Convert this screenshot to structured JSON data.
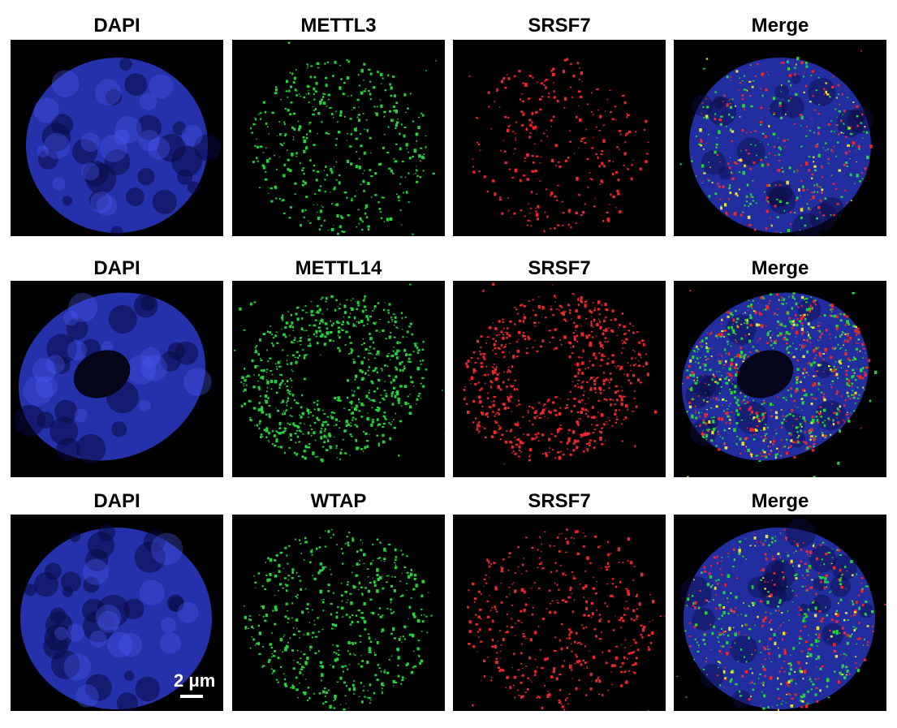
{
  "figure": {
    "rows": [
      {
        "channels": [
          "DAPI",
          "METTL3",
          "SRSF7",
          "Merge"
        ]
      },
      {
        "channels": [
          "DAPI",
          "METTL14",
          "SRSF7",
          "Merge"
        ]
      },
      {
        "channels": [
          "DAPI",
          "WTAP",
          "SRSF7",
          "Merge"
        ]
      }
    ],
    "scale_bar": {
      "label": "2 μm"
    },
    "colors": {
      "dapi": "#2a3ac8",
      "green": "#22d43a",
      "red": "#f0262a",
      "yellow": "#e8e030",
      "background": "#000000"
    }
  }
}
